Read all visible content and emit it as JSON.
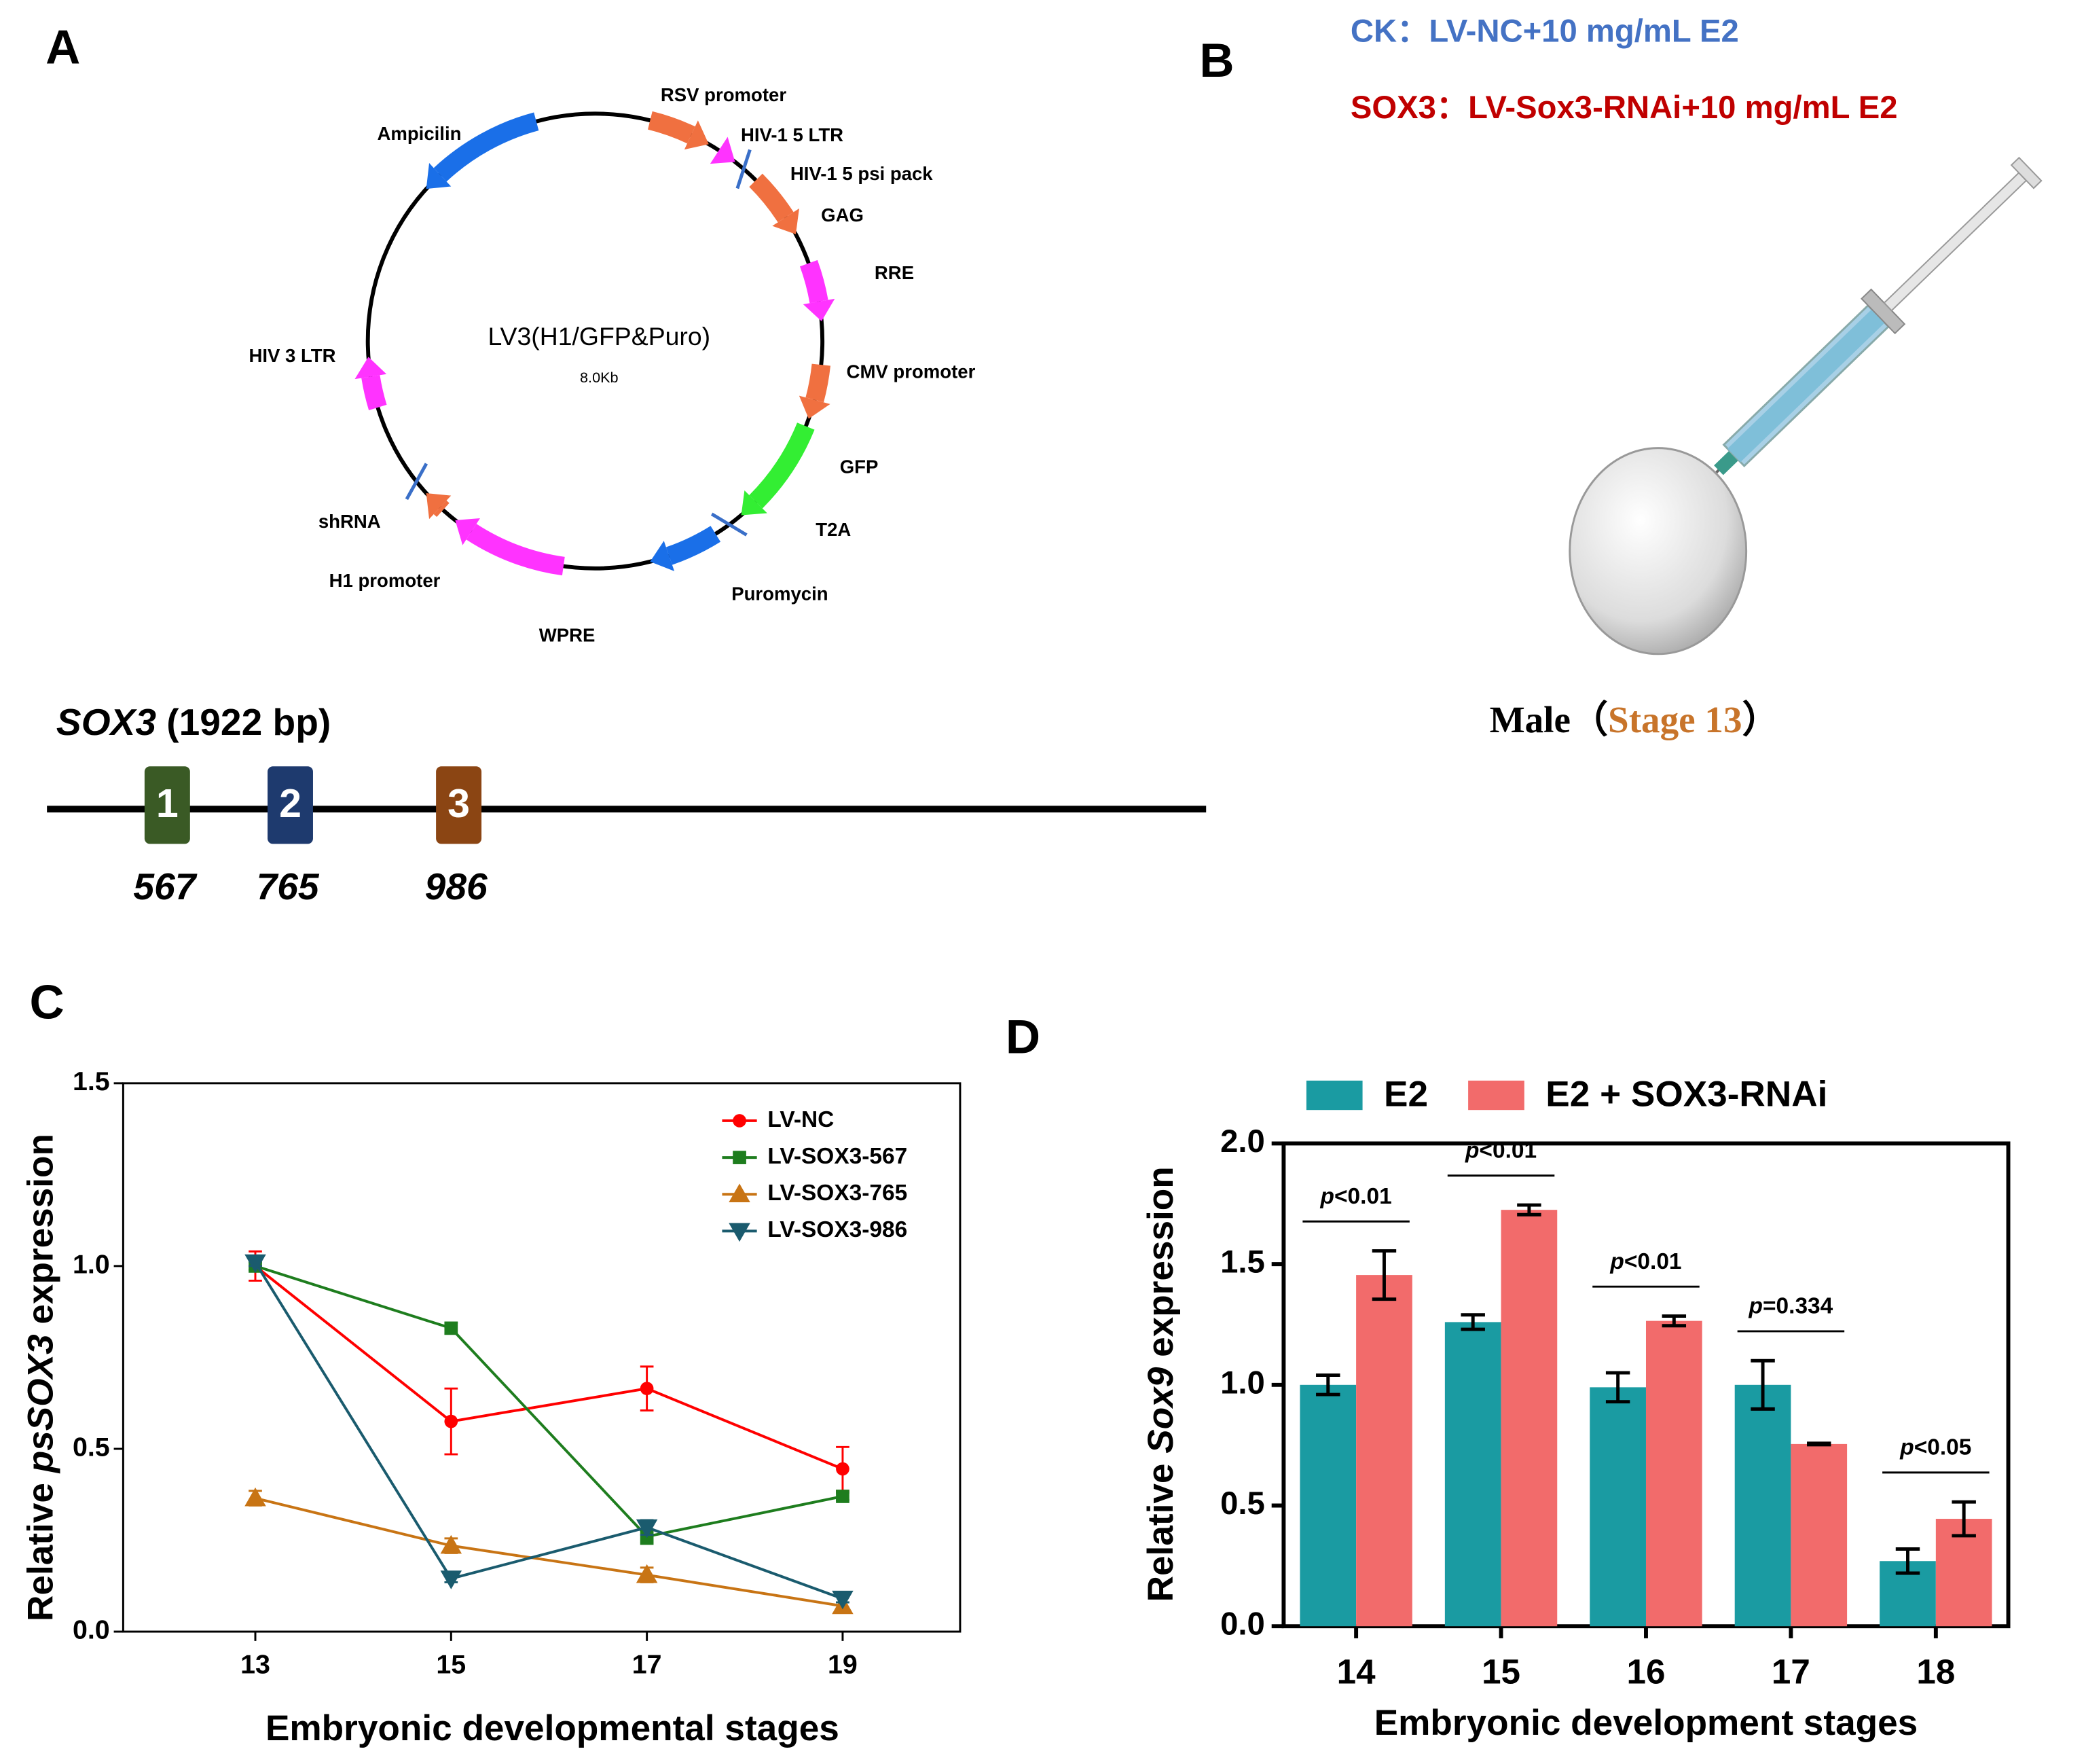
{
  "panel_labels": [
    "A",
    "B",
    "C",
    "D"
  ],
  "plasmid": {
    "name": "LV3(H1/GFP&Puro)",
    "size": "8.0Kb",
    "features": [
      "RSV promoter",
      "HIV-1 5 LTR",
      "HIV-1 5 psi pack",
      "GAG",
      "RRE",
      "CMV promoter",
      "GFP",
      "T2A",
      "Puromycin",
      "WPRE",
      "H1 promoter",
      "shRNA",
      "HIV 3 LTR",
      "Ampicilin"
    ]
  },
  "gene": {
    "title": "SOX3 (1922 bp)",
    "italic": "SOX3",
    "sites": [
      {
        "label": "1",
        "position": 567
      },
      {
        "label": "2",
        "position": 765
      },
      {
        "label": "3",
        "position": 986
      }
    ]
  },
  "injection": {
    "groups": [
      "CK：LV-NC+10 mg/mL E2",
      "SOX3：LV-Sox3-RNAi+10 mg/mL E2"
    ],
    "caption": [
      "Male（",
      "Stage 13",
      "）"
    ]
  },
  "chart_data": [
    {
      "type": "line",
      "xlabel": "Embryonic developmental stages",
      "ylabel": "Relative psSOX3 expression",
      "ylabel_italic": "psSOX3",
      "x": [
        13,
        15,
        17,
        19
      ],
      "xlim": [
        11.65,
        20.2
      ],
      "xticks": [
        13,
        15,
        17,
        19
      ],
      "ylim": [
        0,
        1.5
      ],
      "yticks": [
        {
          "value": 0,
          "label": "0.0"
        },
        0.5,
        {
          "value": 1,
          "label": "1.0"
        },
        1.5
      ],
      "legend": "upper right",
      "series": [
        {
          "name": "LV-NC",
          "color": "#ff0000",
          "marker": "circle",
          "values": [
            1.0,
            0.575,
            0.665,
            0.445
          ],
          "errors": [
            0.04,
            0.09,
            0.06,
            0.06
          ]
        },
        {
          "name": "LV-SOX3-567",
          "color": "#1e7d1e",
          "marker": "square",
          "values": [
            1.0,
            0.83,
            0.26,
            0.37
          ],
          "errors": [
            0.01,
            0.015,
            0.02,
            0.01
          ]
        },
        {
          "name": "LV-SOX3-765",
          "color": "#c87414",
          "marker": "triangle",
          "values": [
            0.365,
            0.235,
            0.155,
            0.07
          ],
          "errors": [
            0.02,
            0.02,
            0.02,
            0.01
          ]
        },
        {
          "name": "LV-SOX3-986",
          "color": "#1a5b6e",
          "marker": "triangle-down",
          "values": [
            1.01,
            0.145,
            0.285,
            0.09
          ],
          "errors": [
            0.01,
            0.01,
            0.02,
            0.01
          ]
        }
      ]
    },
    {
      "type": "bar",
      "xlabel": "Embryonic development stages",
      "ylabel": "Relative Sox9 expression",
      "ylabel_italic": "Sox9",
      "categories": [
        "14",
        "15",
        "16",
        "17",
        "18"
      ],
      "ylim": [
        0,
        2
      ],
      "yticks": [
        {
          "value": 0,
          "label": "0.0"
        },
        0.5,
        {
          "value": 1,
          "label": "1.0"
        },
        1.5,
        {
          "value": 2,
          "label": "2.0"
        }
      ],
      "legend": "upper center",
      "series": [
        {
          "name": "E2",
          "color": "#1a9ba2",
          "values": [
            1.0,
            1.26,
            0.99,
            1.0,
            0.27
          ],
          "errors": [
            0.04,
            0.03,
            0.06,
            0.1,
            0.05
          ]
        },
        {
          "name": "E2 + SOX3-RNAi",
          "color": "#f26b6b",
          "values": [
            1.455,
            1.725,
            1.265,
            0.755,
            0.445
          ],
          "errors": [
            0.1,
            0.02,
            0.02,
            0.003,
            0.07
          ]
        }
      ],
      "annotations": [
        "p<0.01",
        "p<0.01",
        "p<0.01",
        "p=0.334",
        "p<0.05"
      ]
    }
  ]
}
